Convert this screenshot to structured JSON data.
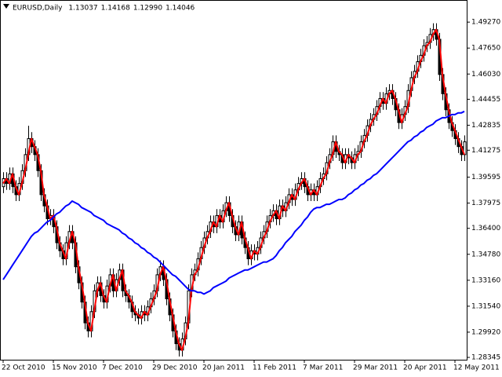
{
  "chart_data": {
    "type": "candlestick",
    "title": "EURUSD,Daily",
    "header_values": [
      "1.13037",
      "1.14168",
      "1.12990",
      "1.14046"
    ],
    "categories": [
      "22 Oct 2010",
      null,
      null,
      null,
      null,
      null,
      null,
      null,
      null,
      null,
      null,
      null,
      null,
      null,
      null,
      null,
      "15 Nov 2010",
      null,
      null,
      null,
      null,
      null,
      null,
      null,
      null,
      null,
      null,
      null,
      null,
      null,
      null,
      null,
      "7 Dec 2010",
      null,
      null,
      null,
      null,
      null,
      null,
      null,
      null,
      null,
      null,
      null,
      null,
      null,
      null,
      null,
      "29 Dec 2010",
      null,
      null,
      null,
      null,
      null,
      null,
      null,
      null,
      null,
      null,
      null,
      null,
      null,
      null,
      null,
      "20 Jan 2011",
      null,
      null,
      null,
      null,
      null,
      null,
      null,
      null,
      null,
      null,
      null,
      null,
      null,
      null,
      null,
      "11 Feb 2011",
      null,
      null,
      null,
      null,
      null,
      null,
      null,
      null,
      null,
      null,
      null,
      null,
      null,
      null,
      null,
      "7 Mar 2011",
      null,
      null,
      null,
      null,
      null,
      null,
      null,
      null,
      null,
      null,
      null,
      null,
      null,
      null,
      null,
      "29 Mar 2011",
      null,
      null,
      null,
      null,
      null,
      null,
      null,
      null,
      null,
      null,
      null,
      null,
      null,
      null,
      null,
      "20 Apr 2011",
      null,
      null,
      null,
      null,
      null,
      null,
      null,
      null,
      null,
      null,
      null,
      null,
      null,
      null,
      null,
      "12 May 2011",
      null,
      null,
      null
    ],
    "open": [
      1.39,
      1.395,
      1.392,
      1.398,
      1.39,
      1.385,
      1.392,
      1.4,
      1.41,
      1.42,
      1.415,
      1.41,
      1.4,
      1.385,
      1.378,
      1.37,
      1.372,
      1.365,
      1.355,
      1.35,
      1.345,
      1.355,
      1.362,
      1.355,
      1.34,
      1.33,
      1.318,
      1.305,
      1.3,
      1.312,
      1.325,
      1.33,
      1.322,
      1.318,
      1.328,
      1.335,
      1.325,
      1.332,
      1.338,
      1.325,
      1.322,
      1.318,
      1.312,
      1.31,
      1.308,
      1.312,
      1.31,
      1.315,
      1.32,
      1.325,
      1.335,
      1.34,
      1.332,
      1.32,
      1.31,
      1.3,
      1.292,
      1.288,
      1.295,
      1.305,
      1.325,
      1.335,
      1.338,
      1.345,
      1.352,
      1.358,
      1.362,
      1.368,
      1.365,
      1.372,
      1.368,
      1.375,
      1.38,
      1.372,
      1.365,
      1.36,
      1.368,
      1.358,
      1.352,
      1.345,
      1.35,
      1.348,
      1.352,
      1.358,
      1.362,
      1.368,
      1.372,
      1.375,
      1.37,
      1.378,
      1.375,
      1.38,
      1.385,
      1.382,
      1.388,
      1.392,
      1.395,
      1.39,
      1.385,
      1.388,
      1.385,
      1.39,
      1.395,
      1.398,
      1.405,
      1.41,
      1.418,
      1.412,
      1.41,
      1.405,
      1.41,
      1.408,
      1.405,
      1.41,
      1.412,
      1.418,
      1.422,
      1.428,
      1.432,
      1.435,
      1.44,
      1.445,
      1.442,
      1.448,
      1.45,
      1.445,
      1.438,
      1.43,
      1.435,
      1.44,
      1.45,
      1.458,
      1.462,
      1.468,
      1.472,
      1.478,
      1.48,
      1.485,
      1.488,
      1.482,
      1.46,
      1.448,
      1.438,
      1.43,
      1.425,
      1.42,
      1.415,
      1.41
    ],
    "high": [
      1.399,
      1.399,
      1.402,
      1.402,
      1.394,
      1.396,
      1.404,
      1.414,
      1.428,
      1.424,
      1.419,
      1.414,
      1.404,
      1.389,
      1.382,
      1.376,
      1.376,
      1.369,
      1.359,
      1.354,
      1.359,
      1.366,
      1.366,
      1.359,
      1.344,
      1.334,
      1.322,
      1.309,
      1.316,
      1.329,
      1.334,
      1.334,
      1.326,
      1.332,
      1.339,
      1.339,
      1.336,
      1.342,
      1.342,
      1.329,
      1.326,
      1.322,
      1.316,
      1.314,
      1.316,
      1.316,
      1.319,
      1.324,
      1.329,
      1.339,
      1.344,
      1.344,
      1.336,
      1.324,
      1.314,
      1.304,
      1.296,
      1.299,
      1.309,
      1.329,
      1.339,
      1.342,
      1.349,
      1.356,
      1.362,
      1.366,
      1.372,
      1.372,
      1.376,
      1.376,
      1.379,
      1.384,
      1.384,
      1.376,
      1.369,
      1.372,
      1.372,
      1.362,
      1.356,
      1.354,
      1.354,
      1.356,
      1.362,
      1.366,
      1.372,
      1.376,
      1.379,
      1.379,
      1.382,
      1.382,
      1.384,
      1.389,
      1.389,
      1.392,
      1.396,
      1.399,
      1.399,
      1.394,
      1.392,
      1.392,
      1.394,
      1.399,
      1.402,
      1.409,
      1.414,
      1.422,
      1.422,
      1.416,
      1.414,
      1.414,
      1.414,
      1.412,
      1.414,
      1.416,
      1.422,
      1.426,
      1.432,
      1.436,
      1.439,
      1.444,
      1.449,
      1.449,
      1.452,
      1.454,
      1.454,
      1.449,
      1.442,
      1.439,
      1.444,
      1.454,
      1.462,
      1.466,
      1.472,
      1.476,
      1.482,
      1.484,
      1.489,
      1.492,
      1.492,
      1.486,
      1.464,
      1.452,
      1.442,
      1.434,
      1.429,
      1.424,
      1.419,
      1.422
    ],
    "low": [
      1.386,
      1.388,
      1.388,
      1.386,
      1.381,
      1.381,
      1.388,
      1.396,
      1.406,
      1.411,
      1.406,
      1.396,
      1.381,
      1.374,
      1.366,
      1.366,
      1.361,
      1.351,
      1.346,
      1.341,
      1.341,
      1.351,
      1.351,
      1.336,
      1.326,
      1.314,
      1.301,
      1.296,
      1.296,
      1.308,
      1.321,
      1.318,
      1.314,
      1.314,
      1.324,
      1.321,
      1.321,
      1.328,
      1.321,
      1.318,
      1.314,
      1.308,
      1.306,
      1.304,
      1.304,
      1.306,
      1.306,
      1.311,
      1.316,
      1.321,
      1.331,
      1.328,
      1.316,
      1.306,
      1.296,
      1.288,
      1.284,
      1.284,
      1.291,
      1.301,
      1.321,
      1.331,
      1.334,
      1.341,
      1.348,
      1.354,
      1.358,
      1.361,
      1.361,
      1.364,
      1.364,
      1.371,
      1.368,
      1.361,
      1.356,
      1.356,
      1.354,
      1.348,
      1.341,
      1.341,
      1.344,
      1.344,
      1.348,
      1.354,
      1.358,
      1.364,
      1.368,
      1.366,
      1.366,
      1.371,
      1.371,
      1.376,
      1.378,
      1.378,
      1.384,
      1.388,
      1.386,
      1.381,
      1.381,
      1.381,
      1.381,
      1.386,
      1.391,
      1.394,
      1.401,
      1.406,
      1.408,
      1.406,
      1.401,
      1.401,
      1.404,
      1.401,
      1.401,
      1.406,
      1.408,
      1.414,
      1.418,
      1.424,
      1.428,
      1.431,
      1.436,
      1.438,
      1.438,
      1.444,
      1.441,
      1.434,
      1.426,
      1.426,
      1.431,
      1.436,
      1.446,
      1.454,
      1.458,
      1.464,
      1.468,
      1.474,
      1.476,
      1.481,
      1.478,
      1.456,
      1.444,
      1.434,
      1.426,
      1.421,
      1.416,
      1.411,
      1.406,
      1.406
    ],
    "close": [
      1.395,
      1.392,
      1.398,
      1.39,
      1.385,
      1.392,
      1.4,
      1.41,
      1.42,
      1.415,
      1.41,
      1.4,
      1.385,
      1.378,
      1.37,
      1.372,
      1.365,
      1.355,
      1.35,
      1.345,
      1.355,
      1.362,
      1.355,
      1.34,
      1.33,
      1.318,
      1.305,
      1.3,
      1.312,
      1.325,
      1.33,
      1.322,
      1.318,
      1.328,
      1.335,
      1.325,
      1.332,
      1.338,
      1.325,
      1.322,
      1.318,
      1.312,
      1.31,
      1.308,
      1.312,
      1.31,
      1.315,
      1.32,
      1.325,
      1.335,
      1.34,
      1.332,
      1.32,
      1.31,
      1.3,
      1.292,
      1.288,
      1.295,
      1.305,
      1.325,
      1.335,
      1.338,
      1.345,
      1.352,
      1.358,
      1.362,
      1.368,
      1.365,
      1.372,
      1.368,
      1.375,
      1.38,
      1.372,
      1.365,
      1.36,
      1.368,
      1.358,
      1.352,
      1.345,
      1.35,
      1.348,
      1.352,
      1.358,
      1.362,
      1.368,
      1.372,
      1.375,
      1.37,
      1.378,
      1.375,
      1.38,
      1.385,
      1.382,
      1.388,
      1.392,
      1.395,
      1.39,
      1.385,
      1.388,
      1.385,
      1.39,
      1.395,
      1.398,
      1.405,
      1.41,
      1.418,
      1.412,
      1.41,
      1.405,
      1.41,
      1.408,
      1.405,
      1.41,
      1.412,
      1.418,
      1.422,
      1.428,
      1.432,
      1.435,
      1.44,
      1.445,
      1.442,
      1.448,
      1.45,
      1.445,
      1.438,
      1.43,
      1.435,
      1.44,
      1.45,
      1.458,
      1.462,
      1.468,
      1.472,
      1.478,
      1.48,
      1.485,
      1.488,
      1.482,
      1.46,
      1.448,
      1.438,
      1.43,
      1.425,
      1.42,
      1.415,
      1.41,
      1.418
    ],
    "up_color": "#ffffff",
    "down_color": "#000000",
    "lines": [
      {
        "color": "#ff0000",
        "values": [
          1.392,
          1.395,
          1.392,
          1.398,
          1.39,
          1.385,
          1.392,
          1.4,
          1.41,
          1.42,
          1.415,
          1.41,
          1.4,
          1.385,
          1.378,
          1.37,
          1.372,
          1.365,
          1.355,
          1.35,
          1.345,
          1.355,
          1.362,
          1.355,
          1.34,
          1.33,
          1.318,
          1.305,
          1.3,
          1.312,
          1.325,
          1.33,
          1.322,
          1.318,
          1.328,
          1.335,
          1.325,
          1.332,
          1.338,
          1.325,
          1.322,
          1.318,
          1.312,
          1.31,
          1.308,
          1.312,
          1.31,
          1.315,
          1.32,
          1.325,
          1.335,
          1.34,
          1.332,
          1.32,
          1.31,
          1.3,
          1.292,
          1.288,
          1.295,
          1.305,
          1.325,
          1.335,
          1.338,
          1.345,
          1.352,
          1.358,
          1.362,
          1.368,
          1.365,
          1.372,
          1.368,
          1.375,
          1.38,
          1.372,
          1.365,
          1.36,
          1.368,
          1.358,
          1.352,
          1.345,
          1.35,
          1.348,
          1.352,
          1.358,
          1.362,
          1.368,
          1.372,
          1.375,
          1.37,
          1.378,
          1.375,
          1.38,
          1.385,
          1.382,
          1.388,
          1.392,
          1.395,
          1.39,
          1.385,
          1.388,
          1.385,
          1.39,
          1.395,
          1.398,
          1.405,
          1.41,
          1.418,
          1.412,
          1.41,
          1.405,
          1.41,
          1.408,
          1.405,
          1.41,
          1.412,
          1.418,
          1.422,
          1.428,
          1.432,
          1.435,
          1.44,
          1.445,
          1.442,
          1.448,
          1.45,
          1.445,
          1.438,
          1.43,
          1.435,
          1.44,
          1.45,
          1.458,
          1.462,
          1.468,
          1.472,
          1.478,
          1.48,
          1.485,
          1.488,
          1.482,
          1.46,
          1.448,
          1.438,
          1.43,
          1.425,
          1.42,
          1.415,
          1.41
        ]
      },
      {
        "color": "#0000ff",
        "values": [
          1.332,
          1.335,
          1.338,
          1.341,
          1.344,
          1.347,
          1.35,
          1.353,
          1.356,
          1.359,
          1.361,
          1.362,
          1.364,
          1.366,
          1.368,
          1.369,
          1.371,
          1.373,
          1.374,
          1.376,
          1.378,
          1.379,
          1.381,
          1.38,
          1.379,
          1.377,
          1.376,
          1.375,
          1.374,
          1.372,
          1.371,
          1.37,
          1.369,
          1.367,
          1.366,
          1.365,
          1.364,
          1.363,
          1.361,
          1.36,
          1.358,
          1.357,
          1.355,
          1.354,
          1.352,
          1.351,
          1.349,
          1.348,
          1.346,
          1.345,
          1.343,
          1.341,
          1.339,
          1.337,
          1.335,
          1.334,
          1.332,
          1.33,
          1.328,
          1.326,
          1.325,
          1.325,
          1.324,
          1.324,
          1.323,
          1.324,
          1.325,
          1.327,
          1.328,
          1.329,
          1.33,
          1.331,
          1.333,
          1.334,
          1.335,
          1.336,
          1.337,
          1.338,
          1.338,
          1.339,
          1.34,
          1.341,
          1.342,
          1.343,
          1.343,
          1.344,
          1.345,
          1.347,
          1.35,
          1.352,
          1.355,
          1.357,
          1.359,
          1.362,
          1.364,
          1.366,
          1.369,
          1.371,
          1.374,
          1.376,
          1.377,
          1.377,
          1.378,
          1.379,
          1.379,
          1.38,
          1.381,
          1.382,
          1.382,
          1.383,
          1.385,
          1.386,
          1.388,
          1.389,
          1.391,
          1.392,
          1.394,
          1.395,
          1.397,
          1.398,
          1.4,
          1.402,
          1.404,
          1.406,
          1.408,
          1.41,
          1.412,
          1.414,
          1.416,
          1.418,
          1.419,
          1.421,
          1.422,
          1.424,
          1.425,
          1.427,
          1.428,
          1.429,
          1.431,
          1.432,
          1.433,
          1.433,
          1.434,
          1.435,
          1.435,
          1.436,
          1.436,
          1.437
        ]
      }
    ],
    "ylim": [
      1.282,
      1.5065
    ],
    "yticks": [
      {
        "value": 1.4927,
        "label": "1.49270"
      },
      {
        "value": 1.4765,
        "label": "1.47650"
      },
      {
        "value": 1.4603,
        "label": "1.46030"
      },
      1.44455,
      1.42835,
      1.41275,
      1.39595,
      1.37975,
      {
        "value": 1.364,
        "label": "1.36400"
      },
      {
        "value": 1.3478,
        "label": "1.34780"
      },
      {
        "value": 1.3316,
        "label": "1.33160"
      },
      {
        "value": 1.3154,
        "label": "1.31540"
      },
      {
        "value": 1.2992,
        "label": "1.29920"
      },
      1.28345
    ]
  }
}
